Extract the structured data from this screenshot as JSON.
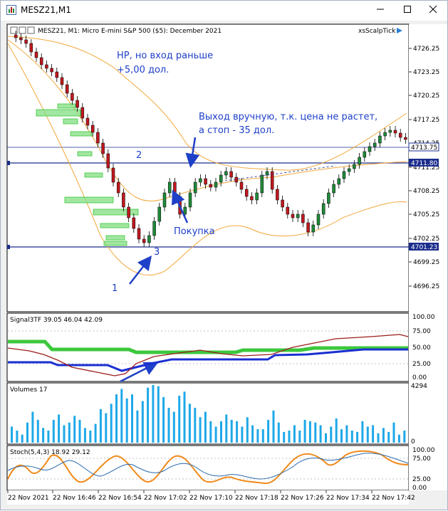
{
  "window": {
    "title": "MESZ21,M1",
    "min_icon": "minimize-icon",
    "max_icon": "maximize-icon",
    "close_icon": "close-icon"
  },
  "main_panel": {
    "header": "MESZ21, M1:  Micro E-mini S&P 500 ($5): December 2021",
    "indicator_label": "xsScalpTick",
    "price_ticks": [
      "4726.25",
      "4723.25",
      "4720.25",
      "4717.25",
      "4714.25",
      "4711.25",
      "4708.25",
      "4705.25",
      "4702.25",
      "4699.25",
      "4696.25"
    ],
    "price_tag_upper": "4713.75",
    "price_tag_mid": "4711.80",
    "price_tag_low": "4701.23",
    "annotations": {
      "note_top_line1": "НР, но вход раньше",
      "note_top_line2": "+5,00 дол.",
      "note_exit_line1": "Выход вручную, т.к. цена не растет,",
      "note_exit_line2": "а стоп - 35 дол.",
      "note_buy": "Покупка",
      "num1": "1",
      "num2": "2",
      "num3": "3"
    },
    "colors": {
      "bull": "#1f8a3a",
      "bear": "#c0181e",
      "bands": "#f2a83c",
      "annotation": "#1f40c8",
      "hline": "#1a2c8c"
    }
  },
  "signal_panel": {
    "header": "Signal3TF 39.05 46.04 42.09",
    "ticks": [
      "100.00",
      "75.00",
      "50.00",
      "25.00",
      "0.00"
    ],
    "colors": {
      "green": "#3cc83c",
      "darkred": "#9c1c1c",
      "blue": "#1a2fd2"
    }
  },
  "volume_panel": {
    "header": "Volumes 17",
    "max_tick": "4294",
    "min_tick": "0",
    "color": "#1ea8e8",
    "values": [
      1200,
      900,
      600,
      1500,
      2300,
      1700,
      1100,
      900,
      1700,
      2100,
      1300,
      1500,
      2000,
      1700,
      1100,
      900,
      1400,
      2500,
      2200,
      2900,
      3600,
      4000,
      3300,
      3600,
      2400,
      3100,
      4100,
      4300,
      4200,
      3400,
      2600,
      2300,
      3500,
      3800,
      2900,
      2600,
      1900,
      2300,
      1600,
      1200,
      1600,
      2100,
      1700,
      1600,
      1200,
      1900,
      1300,
      1000,
      1000,
      1700,
      2400,
      1500,
      800,
      900,
      1300,
      900,
      1700,
      1600,
      1500,
      1300,
      700,
      1200,
      1800,
      1000,
      1300,
      900,
      800,
      1600,
      1200,
      1300,
      700,
      1100,
      800,
      1500,
      600,
      900
    ]
  },
  "stoch_panel": {
    "header": "Stoch(5,4,3) 18.92 29.12",
    "ticks": [
      "100.00",
      "75.00",
      "25.00",
      "0.00"
    ],
    "colors": {
      "main": "#ef8a1a",
      "signal": "#2a6ab0"
    }
  },
  "time_axis": {
    "labels": [
      "22 Nov 2021",
      "22 Nov 16:46",
      "22 Nov 16:54",
      "22 Nov 17:02",
      "22 Nov 17:10",
      "22 Nov 17:18",
      "22 Nov 17:26",
      "22 Nov 17:34",
      "22 Nov 17:42"
    ]
  }
}
